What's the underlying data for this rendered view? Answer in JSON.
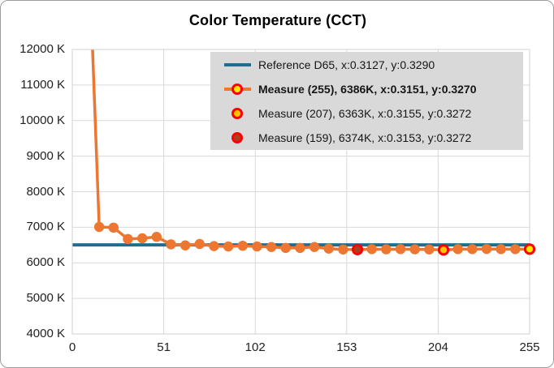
{
  "window": {
    "background": "#ffffff",
    "border_color": "#9d9d9d"
  },
  "chart_data": {
    "type": "line",
    "title": "Color Temperature (CCT)",
    "grid": true,
    "grid_color": "#d9d9d9",
    "plot_border_color": "#d0d0d0",
    "x_axis": {
      "min": 0,
      "max": 255,
      "tick_values": [
        0,
        51,
        102,
        153,
        204,
        255
      ],
      "labels": [
        "0",
        "51",
        "102",
        "153",
        "204",
        "255"
      ]
    },
    "y_axis": {
      "min": 4000,
      "max": 12000,
      "tick_values": [
        12000,
        11000,
        10000,
        9000,
        8000,
        7000,
        6000,
        5000,
        4000
      ],
      "labels": [
        "12000 K",
        "11000 K",
        "10000 K",
        "9000 K",
        "8000 K",
        "7000 K",
        "6000 K",
        "5000 K",
        "4000 K"
      ]
    },
    "reference_line": {
      "name": "Reference D65",
      "value": 6504,
      "color": "#216c91",
      "width": 4
    },
    "series": [
      {
        "name": "Measure",
        "color": "#ed7631",
        "line_width": 3.5,
        "marker_radius": 6.2,
        "x": [
          7,
          15,
          23,
          31,
          39,
          47,
          55,
          63,
          71,
          79,
          87,
          95,
          103,
          111,
          119,
          127,
          135,
          143,
          151,
          159,
          167,
          175,
          183,
          191,
          199,
          207,
          215,
          223,
          231,
          239,
          247,
          255
        ],
        "cct": [
          17800,
          7010,
          6990,
          6670,
          6690,
          6730,
          6520,
          6490,
          6530,
          6470,
          6460,
          6480,
          6460,
          6445,
          6420,
          6420,
          6445,
          6400,
          6375,
          6374,
          6385,
          6380,
          6385,
          6380,
          6375,
          6363,
          6385,
          6385,
          6390,
          6385,
          6385,
          6386
        ]
      }
    ],
    "highlight_points": [
      {
        "x": 159,
        "cct": 6374,
        "fill": "#ae3c21",
        "ring": "#ff0000"
      },
      {
        "x": 207,
        "cct": 6363,
        "fill": "#ffc400",
        "ring": "#ff0000"
      },
      {
        "x": 255,
        "cct": 6386,
        "fill": "#ffe600",
        "ring": "#ff0000"
      }
    ]
  },
  "legend": {
    "background": "#d9d9d9",
    "items": [
      {
        "label": "Reference D65, x:0.3127, y:0.3290",
        "bold": false,
        "swatch": "line",
        "line_color": "#216c91"
      },
      {
        "label": "Measure (255), 6386K, x:0.3151, y:0.3270",
        "bold": true,
        "swatch": "line-marker",
        "line_color": "#ed7631",
        "fill": "#ffe600",
        "ring": "#ff0000"
      },
      {
        "label": "Measure (207), 6363K, x:0.3155, y:0.3272",
        "bold": false,
        "swatch": "marker",
        "fill": "#ffc400",
        "ring": "#ff0000"
      },
      {
        "label": "Measure (159), 6374K, x:0.3153, y:0.3272",
        "bold": false,
        "swatch": "marker",
        "fill": "#ae3c21",
        "ring": "#ff0000"
      }
    ]
  }
}
